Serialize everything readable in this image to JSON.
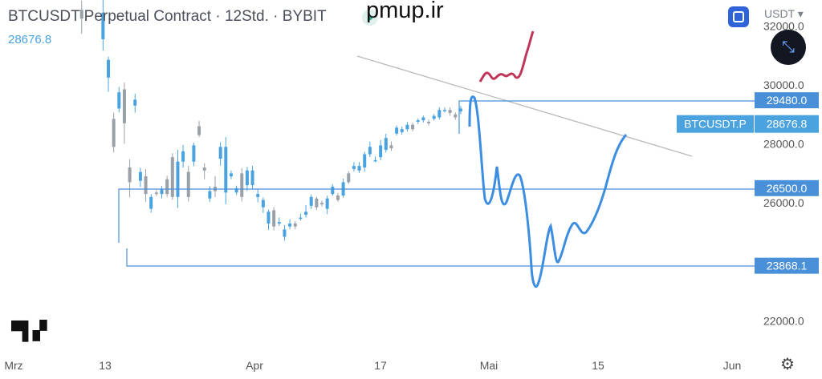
{
  "header": {
    "title": "BTCUSDT Perpetual Contract · 12Std. · BYBIT",
    "last_price": "28676.8",
    "watermark": "pmup.ir",
    "currency": "USDT"
  },
  "icons": {
    "fullscreen": "fullscreen-icon",
    "collapse": "collapse-arrows-icon",
    "settings": "gear-icon",
    "logo": "tradingview-logo"
  },
  "chart_data": {
    "type": "candlestick",
    "symbol_label": "BTCUSDT.P",
    "last_price": 28676.8,
    "ylim": [
      21500,
      32300
    ],
    "y_ticks": [
      22000,
      26000,
      28000,
      30000,
      32000
    ],
    "x_ticks": [
      "Mrz",
      "13",
      "Apr",
      "17",
      "Mai",
      "15",
      "Jun"
    ],
    "price_levels": [
      29480.0,
      26500.0,
      23868.1
    ],
    "colors": {
      "up": "#4aa3df",
      "down": "#9aa0a8",
      "level": "#4a90d9",
      "projection": "#3d8de0",
      "trend": "#b9b9b9",
      "red": "#c0365a"
    },
    "candles": [
      [
        27.5,
        22.8,
        26.8,
        22.6,
        22.9
      ],
      [
        21.4,
        22.9,
        26.5,
        22.4,
        21.7
      ],
      [
        24.2,
        21.2,
        26.3,
        20.4,
        23.5
      ],
      [
        27.5,
        23.2,
        25.9,
        23.1,
        23.8
      ],
      [
        26.1,
        23.9,
        26.7,
        23.5,
        26.5
      ],
      [
        25.7,
        23.8,
        26.7,
        23.5,
        26.7
      ],
      [
        24.8,
        23.0,
        26.4,
        21.8,
        25.5
      ],
      [
        24.2,
        25.4,
        26.5,
        23.2,
        24.6
      ],
      [
        21.7,
        26.1,
        26.0,
        23.8,
        22.8
      ],
      [
        21.0,
        21.6,
        26.2,
        22.3,
        21.3
      ],
      [
        19.8,
        19.5,
        26.1,
        20.6,
        20.1
      ],
      [
        19.3,
        19.9,
        19.0,
        21.1,
        19.7
      ],
      [
        19.7,
        20.6,
        20.6,
        21.5,
        19.9
      ],
      [
        19.1,
        20.6,
        19.0,
        21.3,
        20.0
      ],
      [
        19.7,
        21.4,
        19.6,
        22.1,
        20.4
      ],
      [
        16.1,
        22.6,
        15.5,
        20.5,
        19.9
      ],
      [
        18.8,
        18.9,
        18.5,
        18.8,
        17.8
      ],
      [
        18.4,
        17.5,
        18.3,
        17.5,
        18.7
      ],
      [
        17.0,
        14.0,
        18.1,
        12.4,
        16.5
      ],
      [
        14.1,
        13.1,
        15.9,
        9.8,
        11.4
      ],
      [
        11.5,
        9.6,
        12.7,
        10.0,
        8.0
      ],
      [
        8.7,
        9.2,
        6.8,
        7.9,
        9.8
      ],
      [
        9.4,
        7.3,
        10.5,
        6.3,
        10.0
      ],
      [
        10.7,
        9.4,
        8.4,
        10.8,
        5.4
      ],
      [
        5.4,
        8.2,
        4.4,
        10.0,
        9.2
      ],
      [
        9.6,
        4.8,
        10.0,
        6.0,
        8.1
      ],
      [
        4.5,
        4.9,
        5.1,
        4.2,
        5.8
      ],
      [
        4.8,
        3.3,
        3.6,
        4.8,
        3.1
      ],
      [
        2.6,
        2.6,
        3.4,
        2.3,
        3.2
      ],
      [
        3.7,
        2.2,
        3.6,
        2.0,
        3.6
      ],
      [
        3.6,
        4.4,
        3.9,
        3.9,
        4.3
      ],
      [
        4.6,
        3.1,
        3.6,
        3.6,
        4.3
      ],
      [
        6.1,
        5.0,
        3.4,
        5.6,
        5.8
      ],
      [
        3.4,
        4.3,
        5.8,
        7.1,
        6.0
      ],
      [
        5.8,
        6.8,
        6.5,
        5.5,
        4.6
      ],
      [
        5.1,
        3.4,
        3.4,
        4.6,
        4.3
      ],
      [
        5.8,
        4.6,
        6.9,
        4.3,
        6.6
      ],
      [
        8.2,
        6.4,
        7.6,
        7.4,
        8.3
      ],
      [
        5.4,
        5.8,
        5.2,
        6.5,
        3.4
      ],
      [
        3.3,
        5.2,
        3.8,
        6.1,
        3.8
      ],
      [
        4.1,
        3.3,
        3.8,
        5.8,
        5.3
      ],
      [
        6.0,
        5.8,
        6.8,
        5.0,
        4.5
      ],
      [
        3.7,
        4.8,
        6.8,
        7.1,
        6.5
      ],
      [
        4.8,
        5.7,
        5.0,
        6.0,
        4.5
      ],
      [
        3.7,
        4.4,
        4.0,
        4.6,
        3.9
      ],
      [
        5.0,
        4.8,
        3.4,
        3.8,
        4.2
      ],
      [
        4.2,
        4.8,
        5.2,
        4.3,
        5.3
      ],
      [
        4.2,
        4.1,
        5.2,
        4.9,
        3.5
      ],
      [
        3.4,
        3.4,
        3.6,
        2.5,
        2.4
      ],
      [
        2.7,
        3.0,
        3.2,
        2.8,
        1.6
      ],
      [
        1.6,
        2.8,
        2.4,
        2.7,
        2.9
      ],
      [
        2.5,
        2.6,
        1.4,
        3.0,
        1.9
      ],
      [
        1.6,
        1.2,
        1.7,
        2.0,
        1.4
      ],
      [
        0.7,
        1.4,
        1.2,
        2.1,
        1.3
      ],
      [
        1.4,
        1.3,
        1.6,
        2.0,
        1.7
      ],
      [
        1.6,
        1.1,
        1.4,
        0.9,
        1.3
      ],
      [
        2.0,
        2.0,
        2.0,
        1.4,
        1.7
      ],
      [
        2.2,
        2.3,
        2.4,
        3.7,
        2.5
      ],
      [
        2.8,
        3.1,
        3.4,
        3.3,
        3.2
      ],
      [
        3.3,
        3.6,
        2.7,
        3.6,
        3.0
      ],
      [
        3.0,
        2.6,
        2.9,
        2.7,
        3.1
      ],
      [
        2.6,
        3.0,
        3.3,
        3.3,
        3.6
      ],
      [
        3.6,
        3.5,
        4.1,
        3.3,
        3.6
      ],
      [
        3.5,
        3.5,
        3.2,
        3.3,
        3.5
      ],
      [
        3.5,
        4.5,
        4.4,
        5.0,
        3.6
      ],
      [
        5.0,
        4.4,
        4.4,
        4.3,
        5.0
      ],
      [
        5.3,
        4.3,
        5.5,
        4.9,
        5.1
      ],
      [
        5.2,
        5.4,
        5.5,
        6.0,
        5.4
      ],
      [
        5.4,
        5.6,
        6.3,
        5.8,
        6.1
      ],
      [
        6.3,
        6.8,
        6.8,
        5.8,
        6.0
      ],
      [
        5.9,
        6.0,
        5.9,
        6.5,
        6.0
      ],
      [
        6.1,
        6.2,
        6.9,
        7.2,
        6.5
      ],
      [
        6.6,
        7.0,
        7.4,
        7.7,
        6.9
      ],
      [
        6.9,
        6.9,
        6.7,
        7.5,
        7.1
      ],
      [
        7.7,
        7.9,
        8.1,
        8.0,
        7.7
      ],
      [
        7.8,
        8.2,
        8.0,
        8.0,
        8.0
      ],
      [
        8.0,
        8.1,
        8.3,
        8.4,
        8.2
      ],
      [
        8.3,
        8.5,
        8.0,
        8.6,
        8.4
      ],
      [
        8.5,
        8.7,
        8.6,
        8.7,
        8.6
      ],
      [
        8.6,
        8.7,
        8.8,
        8.7,
        8.5
      ],
      [
        8.5,
        8.6,
        8.4,
        8.7,
        8.6
      ],
      [
        8.7,
        8.8,
        8.9,
        8.8,
        8.7
      ],
      [
        8.8,
        8.8,
        9.3,
        8.5,
        8.9
      ],
      [
        9.3,
        9.4,
        9.3,
        9.2,
        9.1
      ],
      [
        9.3,
        9.1,
        9.1,
        9.4,
        9.0
      ],
      [
        9.0,
        9.2,
        8.8,
        9.1,
        9.2
      ],
      [
        9.2,
        9.2,
        9.4,
        9.4,
        9.5
      ]
    ]
  }
}
